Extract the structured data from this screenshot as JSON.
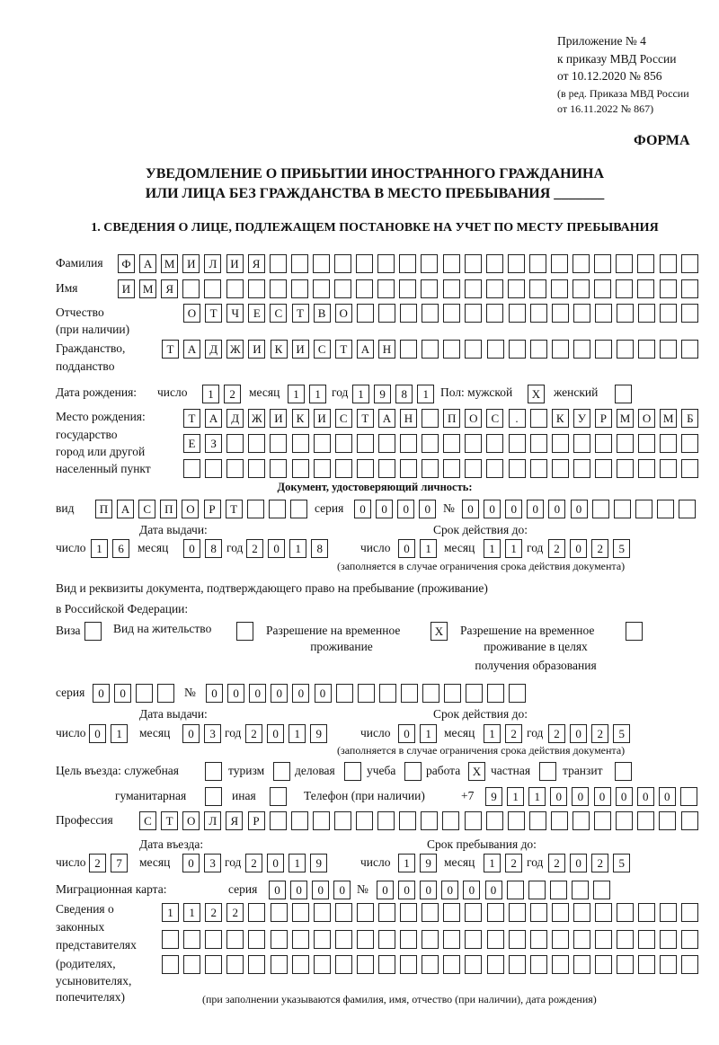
{
  "header": {
    "appendix": "Приложение № 4",
    "order": "к приказу МВД России",
    "order_date": "от 10.12.2020 № 856",
    "edition1": "(в ред. Приказа МВД России",
    "edition2": "от 16.11.2022 № 867)",
    "form_label": "ФОРМА",
    "title1": "УВЕДОМЛЕНИЕ О ПРИБЫТИИ ИНОСТРАННОГО ГРАЖДАНИНА",
    "title2": "ИЛИ ЛИЦА БЕЗ ГРАЖДАНСТВА В МЕСТО ПРЕБЫВАНИЯ _______",
    "section1": "1. СВЕДЕНИЯ О ЛИЦЕ, ПОДЛЕЖАЩЕМ ПОСТАНОВКЕ НА УЧЕТ ПО МЕСТУ ПРЕБЫВАНИЯ"
  },
  "labels": {
    "surname": "Фамилия",
    "name": "Имя",
    "patronymic": "Отчество",
    "patronymic2": "(при наличии)",
    "citizenship": "Гражданство,",
    "citizenship2": "подданство",
    "birth_date": "Дата рождения:",
    "day": "число",
    "month": "месяц",
    "year": "год",
    "sex": "Пол: мужской",
    "female": "женский",
    "birthplace1": "Место рождения:",
    "birthplace2": "государство",
    "birthplace3": "город или другой",
    "birthplace4": "населенный пункт",
    "id_doc": "Документ, удостоверяющий личность:",
    "kind": "вид",
    "series": "серия",
    "number": "№",
    "issue_date": "Дата выдачи:",
    "valid_until": "Срок действия до:",
    "valid_note": "(заполняется в случае ограничения срока действия документа)",
    "stay_doc1": "Вид и реквизиты документа, подтверждающего право на пребывание (проживание)",
    "stay_doc2": "в Российской Федерации:",
    "visa": "Виза",
    "residence": "Вид на жительство",
    "temp1": "Разрешение на временное",
    "temp2": "проживание",
    "edu1": "Разрешение на временное",
    "edu2": "проживание в целях",
    "edu3": "получения образования",
    "purpose": "Цель въезда: служебная",
    "tourism": "туризм",
    "business": "деловая",
    "study": "учеба",
    "work": "работа",
    "private": "частная",
    "transit": "транзит",
    "humanitarian": "гуманитарная",
    "other": "иная",
    "phone": "Телефон (при наличии)",
    "phone_prefix": "+7",
    "profession": "Профессия",
    "entry_date": "Дата въезда:",
    "stay_until": "Срок пребывания до:",
    "migration_card": "Миграционная карта:",
    "reps1": "Сведения о",
    "reps2": "законных",
    "reps3": "представителях",
    "reps4": "(родителях,",
    "reps5": "усыновителях,",
    "reps6": "попечителях)",
    "reps_note": "(при заполнении указываются фамилия, имя, отчество (при наличии), дата рождения)"
  },
  "fields": {
    "surname": "ФАМИЛИЯ",
    "name": "ИМЯ",
    "patronymic": "ОТЧЕСТВО",
    "citizenship": "ТАДЖИКИСТАН",
    "birth_day": "12",
    "birth_month": "11",
    "birth_year": "1981",
    "sex_male": "X",
    "sex_female": "",
    "birthplace_row1": "ТАДЖИКИСТАН ПОС. КУРМОМБ",
    "birthplace_row2": "ЕЗ",
    "birthplace_row3": "",
    "id_kind": "ПАСПОРТ",
    "id_series": "0000",
    "id_number": "000000",
    "id_issue_day": "16",
    "id_issue_month": "08",
    "id_issue_year": "2018",
    "id_valid_day": "01",
    "id_valid_month": "11",
    "id_valid_year": "2025",
    "visa": "",
    "residence": "",
    "temp_residence": "X",
    "temp_residence_edu": "",
    "stay_series": "00",
    "stay_number": "000000",
    "stay_issue_day": "01",
    "stay_issue_month": "03",
    "stay_issue_year": "2019",
    "stay_valid_day": "01",
    "stay_valid_month": "12",
    "stay_valid_year": "2025",
    "purpose_service": "",
    "purpose_tourism": "",
    "purpose_business": "",
    "purpose_study": "",
    "purpose_work": "X",
    "purpose_private": "",
    "purpose_transit": "",
    "purpose_humanitarian": "",
    "purpose_other": "",
    "phone": "911000000",
    "profession": "СТОЛЯР",
    "entry_day": "27",
    "entry_month": "03",
    "entry_year": "2019",
    "stay_until_day": "19",
    "stay_until_month": "12",
    "stay_until_year": "2025",
    "migration_series": "0000",
    "migration_number": "000000",
    "reps_row1": "1122",
    "reps_row2": "",
    "reps_row3": ""
  }
}
